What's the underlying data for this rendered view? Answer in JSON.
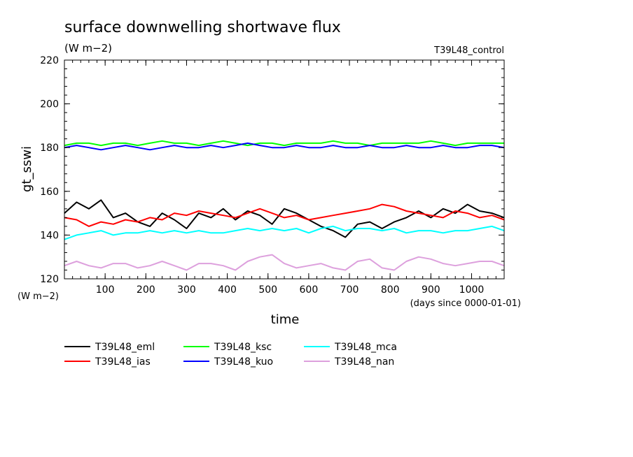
{
  "chart_data": {
    "type": "line",
    "title": "surface downwelling shortwave flux",
    "subtitle": "(W m−2)",
    "experiment": "T39L48_control",
    "xlabel": "time",
    "ylabel": "gt_sswi",
    "x_unit": "(days since 0000-01-01)",
    "y_unit": "(W m−2)",
    "xlim": [
      0,
      1080
    ],
    "ylim": [
      120,
      220
    ],
    "xticks": [
      100,
      200,
      300,
      400,
      500,
      600,
      700,
      800,
      900,
      1000
    ],
    "yticks": [
      120,
      140,
      160,
      180,
      200,
      220
    ],
    "x": [
      0,
      30,
      60,
      90,
      120,
      150,
      180,
      210,
      240,
      270,
      300,
      330,
      360,
      390,
      420,
      450,
      480,
      510,
      540,
      570,
      600,
      630,
      660,
      690,
      720,
      750,
      780,
      810,
      840,
      870,
      900,
      930,
      960,
      990,
      1020,
      1050,
      1080
    ],
    "series": [
      {
        "name": "T39L48_eml",
        "color": "#000000",
        "values": [
          150,
          155,
          152,
          156,
          148,
          150,
          146,
          144,
          150,
          147,
          143,
          150,
          148,
          152,
          147,
          151,
          149,
          145,
          152,
          150,
          147,
          144,
          142,
          139,
          145,
          146,
          143,
          146,
          148,
          151,
          148,
          152,
          150,
          154,
          151,
          150,
          148
        ]
      },
      {
        "name": "T39L48_ias",
        "color": "#ff0000",
        "values": [
          148,
          147,
          144,
          146,
          145,
          147,
          146,
          148,
          147,
          150,
          149,
          151,
          150,
          149,
          148,
          150,
          152,
          150,
          148,
          149,
          147,
          148,
          149,
          150,
          151,
          152,
          154,
          153,
          151,
          150,
          149,
          148,
          151,
          150,
          148,
          149,
          147
        ]
      },
      {
        "name": "T39L48_ksc",
        "color": "#00ff00",
        "values": [
          181,
          182,
          182,
          181,
          182,
          182,
          181,
          182,
          183,
          182,
          182,
          181,
          182,
          183,
          182,
          181,
          182,
          182,
          181,
          182,
          182,
          182,
          183,
          182,
          182,
          181,
          182,
          182,
          182,
          182,
          183,
          182,
          181,
          182,
          182,
          182,
          182
        ]
      },
      {
        "name": "T39L48_kuo",
        "color": "#0000ff",
        "values": [
          180,
          181,
          180,
          179,
          180,
          181,
          180,
          179,
          180,
          181,
          180,
          180,
          181,
          180,
          181,
          182,
          181,
          180,
          180,
          181,
          180,
          180,
          181,
          180,
          180,
          181,
          180,
          180,
          181,
          180,
          180,
          181,
          180,
          180,
          181,
          181,
          180
        ]
      },
      {
        "name": "T39L48_mca",
        "color": "#00ffff",
        "values": [
          138,
          140,
          141,
          142,
          140,
          141,
          141,
          142,
          141,
          142,
          141,
          142,
          141,
          141,
          142,
          143,
          142,
          143,
          142,
          143,
          141,
          143,
          144,
          142,
          143,
          143,
          142,
          143,
          141,
          142,
          142,
          141,
          142,
          142,
          143,
          144,
          142
        ]
      },
      {
        "name": "T39L48_nan",
        "color": "#dda0dd",
        "values": [
          126,
          128,
          126,
          125,
          127,
          127,
          125,
          126,
          128,
          126,
          124,
          127,
          127,
          126,
          124,
          128,
          130,
          131,
          127,
          125,
          126,
          127,
          125,
          124,
          128,
          129,
          125,
          124,
          128,
          130,
          129,
          127,
          126,
          127,
          128,
          128,
          126
        ]
      }
    ],
    "legend": "bottom"
  }
}
